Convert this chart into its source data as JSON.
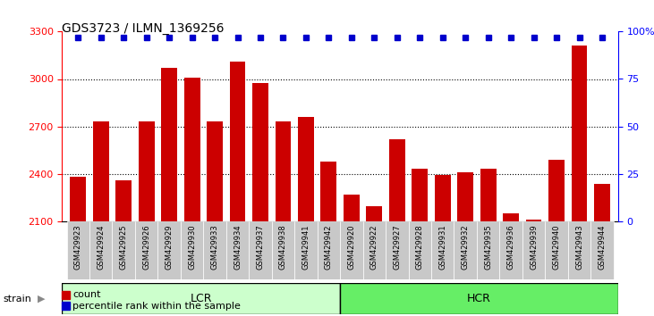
{
  "title": "GDS3723 / ILMN_1369256",
  "samples": [
    "GSM429923",
    "GSM429924",
    "GSM429925",
    "GSM429926",
    "GSM429929",
    "GSM429930",
    "GSM429933",
    "GSM429934",
    "GSM429937",
    "GSM429938",
    "GSM429941",
    "GSM429942",
    "GSM429920",
    "GSM429922",
    "GSM429927",
    "GSM429928",
    "GSM429931",
    "GSM429932",
    "GSM429935",
    "GSM429936",
    "GSM429939",
    "GSM429940",
    "GSM429943",
    "GSM429944"
  ],
  "counts": [
    2380,
    2730,
    2360,
    2730,
    3070,
    3010,
    2730,
    3110,
    2975,
    2730,
    2760,
    2480,
    2270,
    2195,
    2620,
    2430,
    2395,
    2410,
    2435,
    2150,
    2110,
    2490,
    3210,
    2335
  ],
  "percentile_ranks": [
    97,
    97,
    97,
    97,
    97,
    97,
    97,
    97,
    97,
    97,
    97,
    97,
    97,
    97,
    97,
    97,
    97,
    97,
    97,
    97,
    97,
    97,
    97,
    97
  ],
  "lcr_count": 12,
  "hcr_count": 12,
  "lcr_label": "LCR",
  "hcr_label": "HCR",
  "strain_label": "strain",
  "bar_color": "#cc0000",
  "dot_color": "#0000cc",
  "ylim_left": [
    2100,
    3300
  ],
  "ylim_right": [
    0,
    100
  ],
  "yticks_left": [
    2100,
    2400,
    2700,
    3000,
    3300
  ],
  "yticks_right": [
    0,
    25,
    50,
    75,
    100
  ],
  "grid_values": [
    2400,
    2700,
    3000
  ],
  "legend_count_label": "count",
  "legend_percentile_label": "percentile rank within the sample",
  "plot_bg_color": "#ffffff",
  "lcr_color": "#ccffcc",
  "hcr_color": "#66ee66",
  "xtick_bg_color": "#d0d0d0"
}
